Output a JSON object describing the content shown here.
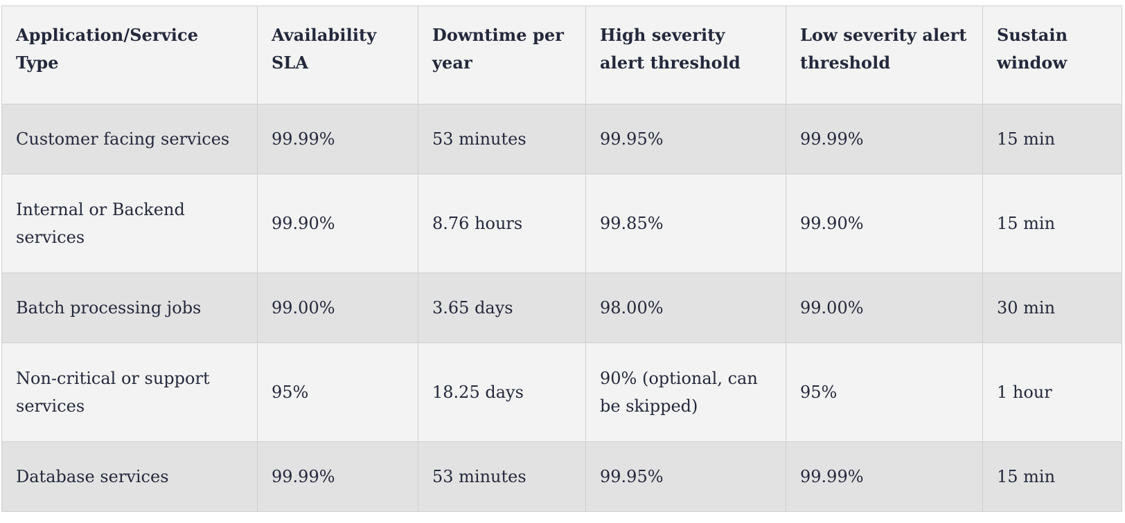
{
  "table": {
    "headers": [
      "Application/Service Type",
      "Availability SLA",
      "Downtime per year",
      "High severity alert threshold",
      "Low severity alert threshold",
      "Sustain window"
    ],
    "rows": [
      [
        "Customer facing services",
        "99.99%",
        "53 minutes",
        "99.95%",
        "99.99%",
        "15 min"
      ],
      [
        "Internal or Backend services",
        "99.90%",
        "8.76 hours",
        "99.85%",
        "99.90%",
        "15 min"
      ],
      [
        "Batch processing jobs",
        "99.00%",
        "3.65 days",
        "98.00%",
        "99.00%",
        "30 min"
      ],
      [
        "Non-critical or support services",
        "95%",
        "18.25 days",
        "90% (optional, can be skipped)",
        "95%",
        "1 hour"
      ],
      [
        "Database services",
        "99.99%",
        "53 minutes",
        "99.95%",
        "99.99%",
        "15 min"
      ]
    ]
  },
  "colors": {
    "header_bg": "#f3f3f3",
    "row_dark_bg": "#e2e2e2",
    "row_light_bg": "#f3f3f3",
    "border": "#cfcfcf",
    "text": "#24283b"
  }
}
